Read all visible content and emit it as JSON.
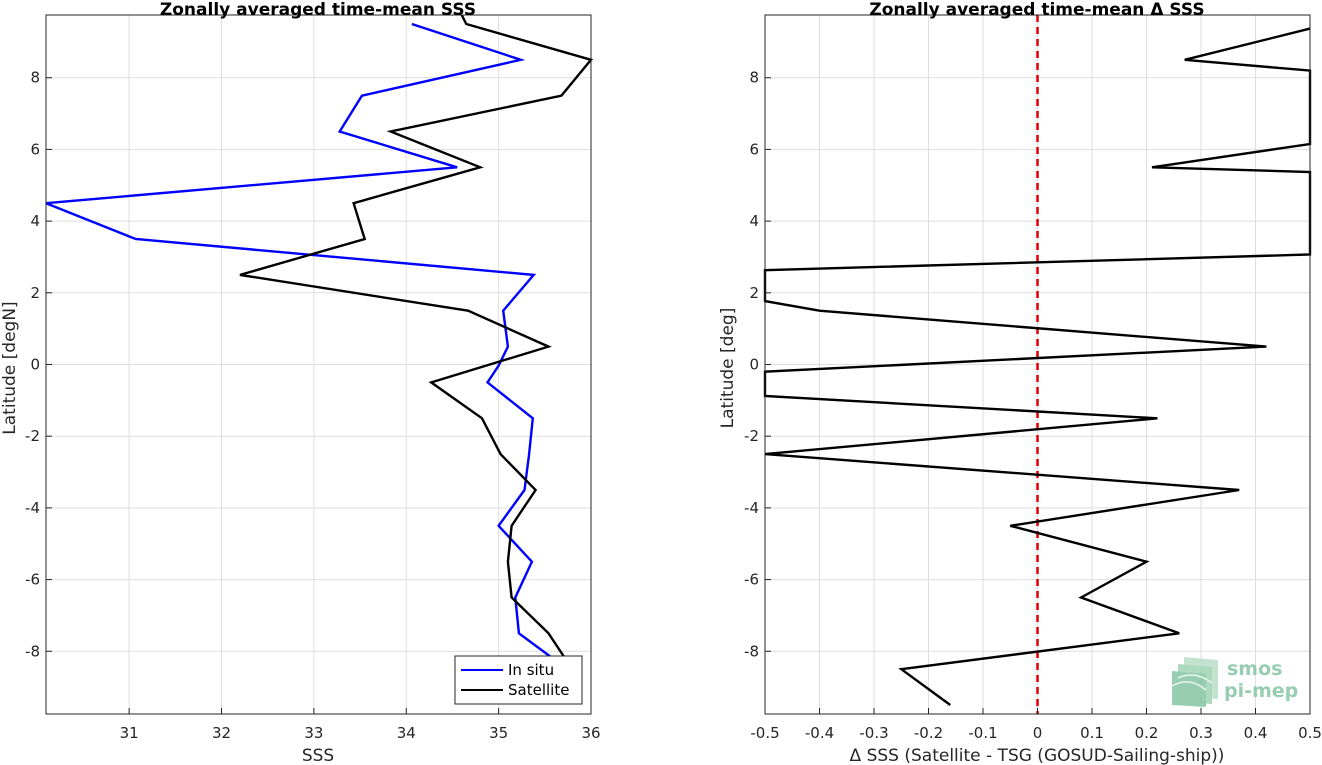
{
  "chart_data": [
    {
      "type": "line",
      "title": "Zonally averaged time-mean SSS",
      "xlabel": "SSS",
      "ylabel": "Latitude [degN]",
      "xlim": [
        30.1,
        36.0
      ],
      "ylim": [
        -9.75,
        9.75
      ],
      "xticks": [
        31,
        32,
        33,
        34,
        35,
        36
      ],
      "yticks": [
        -8,
        -6,
        -4,
        -2,
        0,
        2,
        4,
        6,
        8
      ],
      "grid": true,
      "legend": "bottom-right",
      "series": [
        {
          "name": "In situ",
          "color": "#0000ff",
          "points": [
            [
              34.06,
              9.5
            ],
            [
              35.24,
              8.5
            ],
            [
              33.52,
              7.5
            ],
            [
              33.28,
              6.5
            ],
            [
              34.55,
              5.5
            ],
            [
              30.1,
              4.5
            ],
            [
              31.07,
              3.5
            ],
            [
              35.38,
              2.5
            ],
            [
              35.05,
              1.5
            ],
            [
              35.1,
              0.5
            ],
            [
              35.0,
              -0.03
            ],
            [
              34.88,
              -0.5
            ],
            [
              35.37,
              -1.5
            ],
            [
              35.33,
              -2.5
            ],
            [
              35.28,
              -3.5
            ],
            [
              35.0,
              -4.5
            ],
            [
              35.36,
              -5.5
            ],
            [
              35.18,
              -6.5
            ],
            [
              35.22,
              -7.5
            ],
            [
              35.64,
              -8.3
            ]
          ]
        },
        {
          "name": "Satellite",
          "color": "#000000",
          "points": [
            [
              34.6,
              9.75
            ],
            [
              34.65,
              9.5
            ],
            [
              36.0,
              8.5
            ],
            [
              35.68,
              7.5
            ],
            [
              33.83,
              6.5
            ],
            [
              34.8,
              5.5
            ],
            [
              33.43,
              4.5
            ],
            [
              33.55,
              3.5
            ],
            [
              32.2,
              2.5
            ],
            [
              34.67,
              1.5
            ],
            [
              35.54,
              0.5
            ],
            [
              34.27,
              -0.5
            ],
            [
              34.82,
              -1.5
            ],
            [
              35.02,
              -2.5
            ],
            [
              35.4,
              -3.5
            ],
            [
              35.14,
              -4.5
            ],
            [
              35.1,
              -5.5
            ],
            [
              35.14,
              -6.5
            ],
            [
              35.54,
              -7.5
            ],
            [
              35.72,
              -8.2
            ]
          ]
        }
      ]
    },
    {
      "type": "line",
      "title": "Zonally averaged time-mean Δ SSS",
      "xlabel": "Δ SSS (Satellite - TSG (GOSUD-Sailing-ship))",
      "ylabel": "Latitude [deg]",
      "xlim": [
        -0.5,
        0.5
      ],
      "ylim": [
        -9.75,
        9.75
      ],
      "xticks": [
        -0.5,
        -0.4,
        -0.3,
        -0.2,
        -0.1,
        0,
        0.1,
        0.2,
        0.3,
        0.4,
        0.5
      ],
      "yticks": [
        -8,
        -6,
        -4,
        -2,
        0,
        2,
        4,
        6,
        8
      ],
      "grid": true,
      "reference_line": {
        "x": 0,
        "color": "#e00000",
        "style": "dashed"
      },
      "series": [
        {
          "name": "",
          "color": "#000000",
          "points": [
            [
              0.5,
              9.37
            ],
            [
              0.27,
              8.5
            ],
            [
              0.5,
              8.2
            ],
            [
              0.5,
              6.15
            ],
            [
              0.21,
              5.5
            ],
            [
              0.5,
              5.37
            ],
            [
              0.5,
              3.07
            ],
            [
              -0.5,
              2.63
            ],
            [
              -0.5,
              1.77
            ],
            [
              -0.4,
              1.5
            ],
            [
              0.42,
              0.5
            ],
            [
              -0.5,
              -0.2
            ],
            [
              -0.5,
              -0.88
            ],
            [
              0.22,
              -1.5
            ],
            [
              -0.5,
              -2.5
            ],
            [
              0.37,
              -3.5
            ],
            [
              -0.05,
              -4.5
            ],
            [
              0.2,
              -5.5
            ],
            [
              0.08,
              -6.5
            ],
            [
              0.26,
              -7.5
            ],
            [
              -0.25,
              -8.5
            ],
            [
              -0.16,
              -9.5
            ]
          ]
        }
      ]
    }
  ],
  "watermark": {
    "line1": "smos",
    "line2": "pi-mep"
  }
}
